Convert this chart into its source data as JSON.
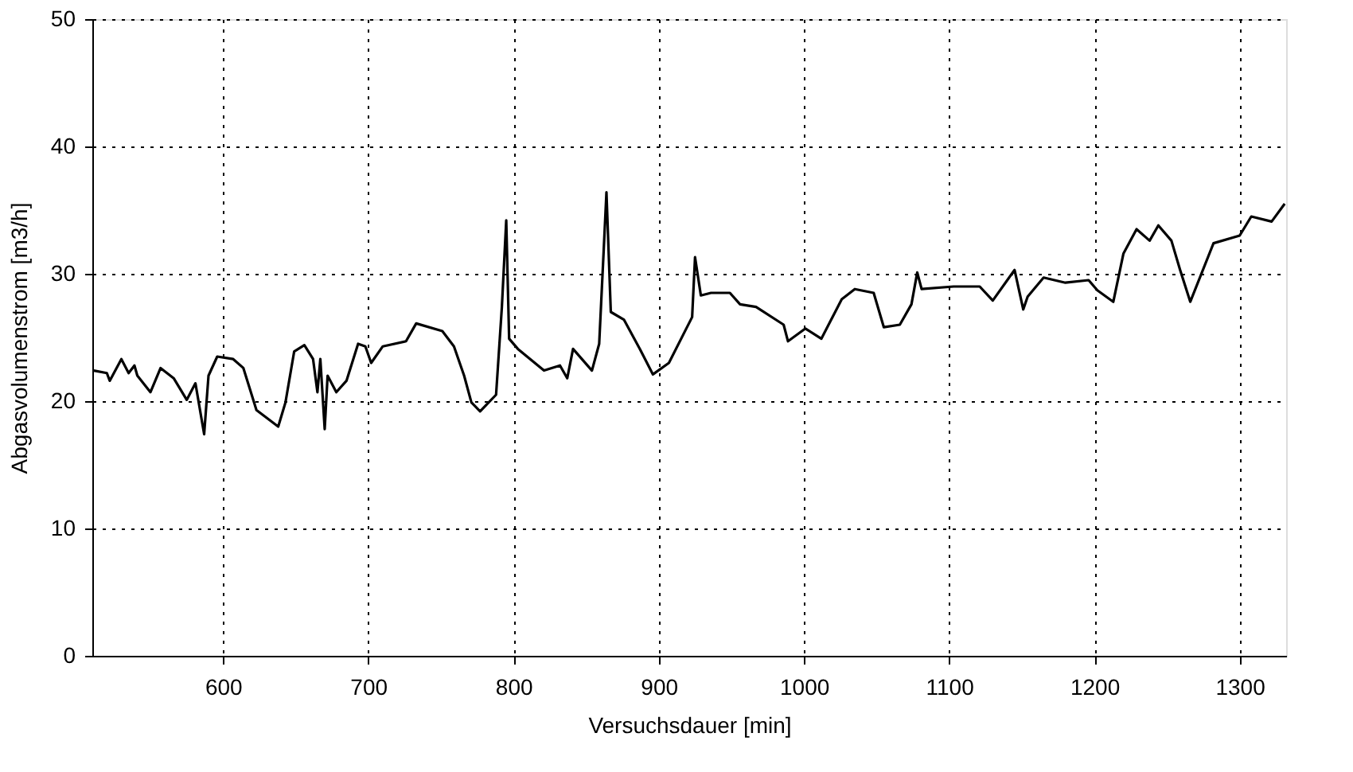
{
  "chart_data": {
    "type": "line",
    "xlabel": "Versuchsdauer [min]",
    "ylabel": "Abgasvolumenstrom [m3/h]",
    "x": [
      511,
      520,
      522,
      530,
      535,
      539,
      541,
      550,
      557,
      566,
      575,
      581,
      587,
      590,
      596,
      607,
      614,
      623,
      638,
      643,
      649,
      656,
      662,
      665,
      667,
      670,
      672,
      678,
      685,
      693,
      698,
      702,
      710,
      726,
      733,
      751,
      759,
      766,
      771,
      777,
      788,
      792,
      795,
      797,
      803,
      821,
      832,
      837,
      841,
      854,
      859,
      862,
      864,
      867,
      876,
      887,
      896,
      907,
      923,
      925,
      929,
      936,
      949,
      956,
      967,
      986,
      989,
      1001,
      1012,
      1026,
      1035,
      1048,
      1055,
      1066,
      1074,
      1078,
      1081,
      1103,
      1121,
      1130,
      1140,
      1145,
      1151,
      1154,
      1165,
      1180,
      1196,
      1202,
      1213,
      1220,
      1229,
      1238,
      1244,
      1253,
      1259,
      1266,
      1282,
      1300,
      1308,
      1322,
      1331
    ],
    "series": [
      {
        "color": "#000000",
        "values": [
          22.4,
          22.2,
          21.6,
          23.3,
          22.2,
          22.8,
          22,
          20.7,
          22.6,
          21.8,
          20.1,
          21.4,
          17.4,
          22,
          23.5,
          23.3,
          22.6,
          19.3,
          18,
          19.9,
          23.9,
          24.4,
          23.3,
          20.7,
          23.3,
          17.8,
          22,
          20.7,
          21.6,
          24.5,
          24.3,
          23,
          24.3,
          24.7,
          26.1,
          25.5,
          24.3,
          22,
          19.9,
          19.2,
          20.5,
          27.4,
          34.2,
          24.9,
          24.1,
          22.4,
          22.8,
          21.8,
          24.1,
          22.4,
          24.5,
          31.6,
          36.4,
          27,
          26.4,
          24.1,
          22.1,
          23,
          26.6,
          31.3,
          28.3,
          28.5,
          28.5,
          27.6,
          27.4,
          26,
          24.7,
          25.7,
          24.9,
          28,
          28.8,
          28.5,
          25.8,
          26,
          27.6,
          30.1,
          28.8,
          29,
          29,
          27.9,
          29.5,
          30.3,
          27.2,
          28.2,
          29.7,
          29.3,
          29.5,
          28.7,
          27.8,
          31.6,
          33.5,
          32.6,
          33.8,
          32.6,
          30.3,
          27.8,
          32.4,
          33,
          34.5,
          34.1,
          35.5
        ]
      }
    ],
    "xlim": [
      510,
      1332
    ],
    "xticks": [
      600,
      700,
      800,
      900,
      1000,
      1100,
      1200,
      1300
    ],
    "ylim": [
      0,
      50
    ],
    "yticks": [
      0,
      10,
      20,
      30,
      40,
      50
    ],
    "grid": true,
    "line_style": "solid",
    "marker": "none"
  }
}
